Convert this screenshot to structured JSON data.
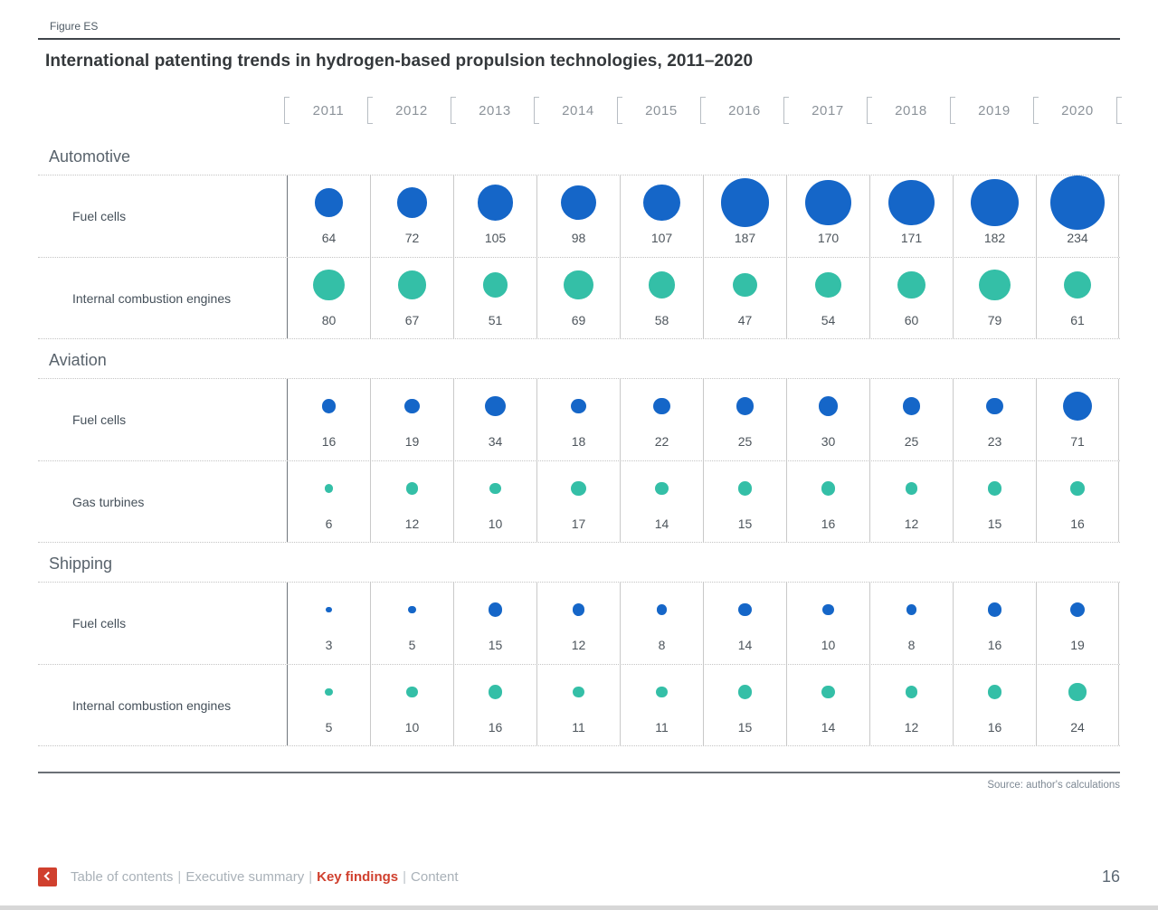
{
  "figure_label": "Figure ES",
  "title": "International patenting trends in hydrogen-based propulsion technologies, 2011–2020",
  "source": "Source: author's calculations",
  "page_number": "16",
  "footer": {
    "separator": "|",
    "items": [
      {
        "label": "Table of contents",
        "active": false
      },
      {
        "label": "Executive summary",
        "active": false
      },
      {
        "label": "Key findings",
        "active": true
      },
      {
        "label": "Content",
        "active": false
      }
    ]
  },
  "colors": {
    "fuel_cells": "#1566c8",
    "secondary": "#34bfa7",
    "nav_active": "#d0402e"
  },
  "chart_data": {
    "type": "bubble-matrix",
    "title": "International patenting trends in hydrogen-based propulsion technologies, 2011–2020",
    "size_encoding": "bubble area proportional to patent count; value labels shown under each bubble",
    "x": [
      "2011",
      "2012",
      "2013",
      "2014",
      "2015",
      "2016",
      "2017",
      "2018",
      "2019",
      "2020"
    ],
    "sections": [
      {
        "name": "Automotive",
        "rows": [
          {
            "label": "Fuel cells",
            "color_key": "fuel_cells",
            "values": [
              64,
              72,
              105,
              98,
              107,
              187,
              170,
              171,
              182,
              234
            ]
          },
          {
            "label": "Internal combustion engines",
            "color_key": "secondary",
            "values": [
              80,
              67,
              51,
              69,
              58,
              47,
              54,
              60,
              79,
              61
            ]
          }
        ]
      },
      {
        "name": "Aviation",
        "rows": [
          {
            "label": "Fuel cells",
            "color_key": "fuel_cells",
            "values": [
              16,
              19,
              34,
              18,
              22,
              25,
              30,
              25,
              23,
              71
            ]
          },
          {
            "label": "Gas turbines",
            "color_key": "secondary",
            "values": [
              6,
              12,
              10,
              17,
              14,
              15,
              16,
              12,
              15,
              16
            ]
          }
        ]
      },
      {
        "name": "Shipping",
        "rows": [
          {
            "label": "Fuel cells",
            "color_key": "fuel_cells",
            "values": [
              3,
              5,
              15,
              12,
              8,
              14,
              10,
              8,
              16,
              19
            ]
          },
          {
            "label": "Internal combustion engines",
            "color_key": "secondary",
            "values": [
              5,
              10,
              16,
              11,
              11,
              15,
              14,
              12,
              16,
              24
            ]
          }
        ]
      }
    ]
  }
}
